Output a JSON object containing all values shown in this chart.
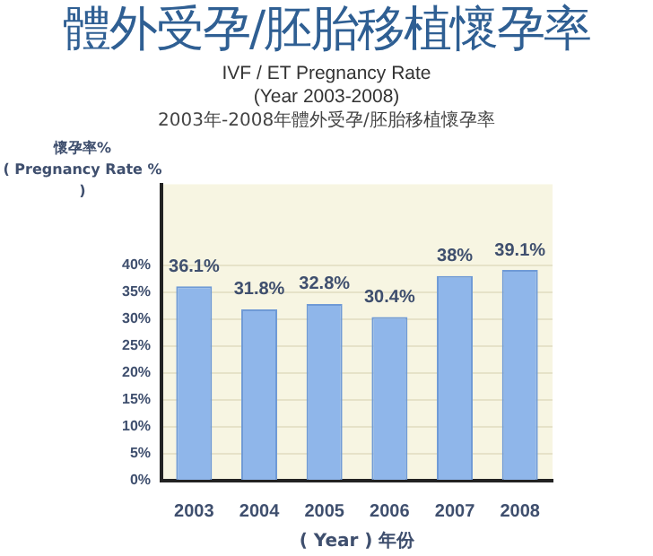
{
  "chart_data": {
    "type": "bar",
    "title": "體外受孕/胚胎移植懷孕率",
    "subtitle": "IVF / ET Pregnancy Rate\n(Year 2003-2008)",
    "annotations": [
      "2003年-2008年體外受孕/胚胎移植懷孕率"
    ],
    "ylabel": "懷孕率%\n( Pregnancy Rate % )",
    "xlabel": "( Year ) 年份",
    "categories": [
      "2003",
      "2004",
      "2005",
      "2006",
      "2007",
      "2008"
    ],
    "values": [
      36.1,
      31.8,
      32.8,
      30.4,
      38,
      39.1
    ],
    "value_labels": [
      "36.1%",
      "31.8%",
      "32.8%",
      "30.4%",
      "38%",
      "39.1%"
    ],
    "color": "#8fb6ea",
    "ylim": [
      0,
      55
    ],
    "yticks": [
      {
        "value": 0,
        "label": "0%"
      },
      {
        "value": 5,
        "label": "5%"
      },
      {
        "value": 10,
        "label": "10%"
      },
      {
        "value": 15,
        "label": "15%"
      },
      {
        "value": 20,
        "label": "20%"
      },
      {
        "value": 25,
        "label": "25%"
      },
      {
        "value": 30,
        "label": "30%"
      },
      {
        "value": 35,
        "label": "35%"
      },
      {
        "value": 40,
        "label": "40%"
      }
    ],
    "grid": "y",
    "legend": false
  }
}
